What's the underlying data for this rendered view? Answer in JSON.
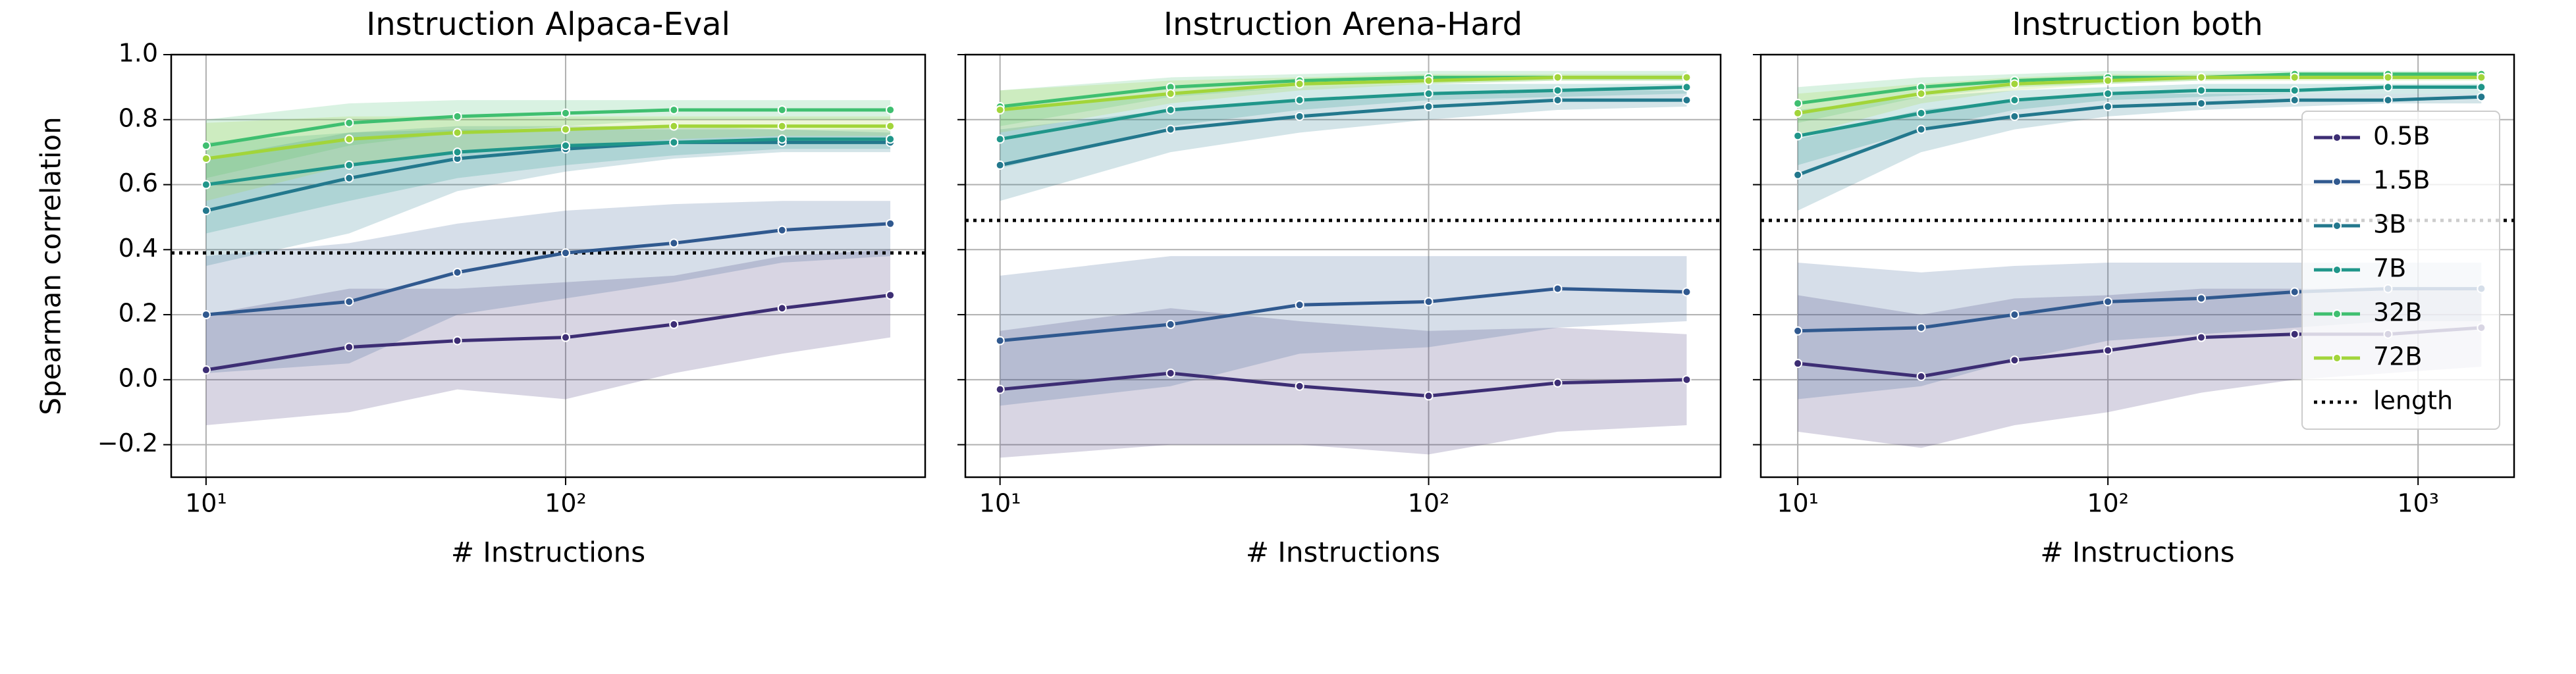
{
  "chart_data": [
    {
      "type": "line",
      "title": "Instruction Alpaca-Eval",
      "xlabel": "# Instructions",
      "ylabel": "Spearman correlation",
      "xscale": "log",
      "grid": true,
      "x": [
        10,
        25,
        50,
        100,
        200,
        400,
        800
      ],
      "xlim": [
        8,
        1000
      ],
      "xticks": [
        {
          "value": 10,
          "label": "10¹"
        },
        {
          "value": 100,
          "label": "10²"
        }
      ],
      "ylim": [
        -0.3,
        1.0
      ],
      "yticks": [
        {
          "value": -0.2,
          "label": "−0.2"
        },
        {
          "value": 0,
          "label": "0.0"
        },
        0.2,
        0.4,
        0.6,
        0.8,
        {
          "value": 1,
          "label": "1.0"
        }
      ],
      "series": [
        {
          "name": "0.5B",
          "color": "#3d2e74",
          "values": [
            0.03,
            0.1,
            0.12,
            0.13,
            0.17,
            0.22,
            0.26
          ],
          "lower": [
            -0.14,
            -0.1,
            -0.03,
            -0.06,
            0.02,
            0.08,
            0.13
          ],
          "upper": [
            0.2,
            0.28,
            0.28,
            0.3,
            0.32,
            0.38,
            0.4
          ]
        },
        {
          "name": "1.5B",
          "color": "#30598f",
          "values": [
            0.2,
            0.24,
            0.33,
            0.39,
            0.42,
            0.46,
            0.48
          ],
          "lower": [
            0.02,
            0.05,
            0.2,
            0.25,
            0.3,
            0.36,
            0.38
          ],
          "upper": [
            0.38,
            0.42,
            0.48,
            0.52,
            0.54,
            0.55,
            0.55
          ]
        },
        {
          "name": "3B",
          "color": "#23788d",
          "values": [
            0.52,
            0.62,
            0.68,
            0.71,
            0.73,
            0.73,
            0.73
          ],
          "lower": [
            0.35,
            0.45,
            0.58,
            0.64,
            0.68,
            0.7,
            0.7
          ],
          "upper": [
            0.68,
            0.76,
            0.78,
            0.78,
            0.78,
            0.77,
            0.76
          ]
        },
        {
          "name": "7B",
          "color": "#20968a",
          "values": [
            0.6,
            0.66,
            0.7,
            0.72,
            0.73,
            0.74,
            0.74
          ],
          "lower": [
            0.45,
            0.55,
            0.62,
            0.66,
            0.69,
            0.71,
            0.71
          ],
          "upper": [
            0.73,
            0.76,
            0.77,
            0.77,
            0.77,
            0.77,
            0.77
          ]
        },
        {
          "name": "32B",
          "color": "#3fbf70",
          "values": [
            0.72,
            0.79,
            0.81,
            0.82,
            0.83,
            0.83,
            0.83
          ],
          "lower": [
            0.62,
            0.72,
            0.76,
            0.78,
            0.8,
            0.8,
            0.8
          ],
          "upper": [
            0.8,
            0.85,
            0.86,
            0.86,
            0.86,
            0.86,
            0.86
          ]
        },
        {
          "name": "72B",
          "color": "#a2d53a",
          "values": [
            0.68,
            0.74,
            0.76,
            0.77,
            0.78,
            0.78,
            0.78
          ],
          "lower": [
            0.55,
            0.66,
            0.7,
            0.72,
            0.74,
            0.75,
            0.75
          ],
          "upper": [
            0.79,
            0.81,
            0.81,
            0.81,
            0.81,
            0.81,
            0.81
          ]
        }
      ],
      "reference": {
        "name": "length",
        "value": 0.39
      }
    },
    {
      "type": "line",
      "title": "Instruction Arena-Hard",
      "xlabel": "# Instructions",
      "xscale": "log",
      "grid": true,
      "x": [
        10,
        25,
        50,
        100,
        200,
        400
      ],
      "xlim": [
        8.3,
        480
      ],
      "xticks": [
        {
          "value": 10,
          "label": "10¹"
        },
        {
          "value": 100,
          "label": "10²"
        }
      ],
      "ylim": [
        -0.3,
        1.0
      ],
      "yticks": [
        -0.2,
        0,
        0.2,
        0.4,
        0.6,
        0.8,
        1
      ],
      "series": [
        {
          "name": "0.5B",
          "color": "#3d2e74",
          "values": [
            -0.03,
            0.02,
            -0.02,
            -0.05,
            -0.01,
            0.0
          ],
          "lower": [
            -0.24,
            -0.2,
            -0.2,
            -0.23,
            -0.16,
            -0.14
          ],
          "upper": [
            0.15,
            0.22,
            0.18,
            0.15,
            0.16,
            0.14
          ]
        },
        {
          "name": "1.5B",
          "color": "#30598f",
          "values": [
            0.12,
            0.17,
            0.23,
            0.24,
            0.28,
            0.27
          ],
          "lower": [
            -0.08,
            -0.02,
            0.08,
            0.1,
            0.16,
            0.18
          ],
          "upper": [
            0.32,
            0.38,
            0.38,
            0.38,
            0.38,
            0.38
          ]
        },
        {
          "name": "3B",
          "color": "#23788d",
          "values": [
            0.66,
            0.77,
            0.81,
            0.84,
            0.86,
            0.86
          ],
          "lower": [
            0.55,
            0.7,
            0.76,
            0.8,
            0.83,
            0.84
          ],
          "upper": [
            0.77,
            0.83,
            0.86,
            0.88,
            0.89,
            0.89
          ]
        },
        {
          "name": "7B",
          "color": "#20968a",
          "values": [
            0.74,
            0.83,
            0.86,
            0.88,
            0.89,
            0.9
          ],
          "lower": [
            0.65,
            0.78,
            0.83,
            0.86,
            0.87,
            0.88
          ],
          "upper": [
            0.83,
            0.88,
            0.9,
            0.91,
            0.91,
            0.91
          ]
        },
        {
          "name": "32B",
          "color": "#3fbf70",
          "values": [
            0.84,
            0.9,
            0.92,
            0.93,
            0.93,
            0.93
          ],
          "lower": [
            0.78,
            0.87,
            0.9,
            0.91,
            0.92,
            0.92
          ],
          "upper": [
            0.89,
            0.93,
            0.94,
            0.95,
            0.95,
            0.95
          ]
        },
        {
          "name": "72B",
          "color": "#a2d53a",
          "values": [
            0.83,
            0.88,
            0.91,
            0.92,
            0.93,
            0.93
          ],
          "lower": [
            0.76,
            0.85,
            0.89,
            0.91,
            0.92,
            0.92
          ],
          "upper": [
            0.89,
            0.92,
            0.93,
            0.94,
            0.94,
            0.94
          ]
        }
      ],
      "reference": {
        "name": "length",
        "value": 0.49
      }
    },
    {
      "type": "line",
      "title": "Instruction both",
      "xlabel": "# Instructions",
      "xscale": "log",
      "grid": true,
      "legend": "right",
      "x": [
        10,
        25,
        50,
        100,
        200,
        400,
        800,
        1600
      ],
      "xlim": [
        7.6,
        2040
      ],
      "xticks": [
        {
          "value": 10,
          "label": "10¹"
        },
        {
          "value": 100,
          "label": "10²"
        },
        {
          "value": 1000,
          "label": "10³"
        }
      ],
      "ylim": [
        -0.3,
        1.0
      ],
      "yticks": [
        -0.2,
        0,
        0.2,
        0.4,
        0.6,
        0.8,
        1
      ],
      "series": [
        {
          "name": "0.5B",
          "color": "#3d2e74",
          "values": [
            0.05,
            0.01,
            0.06,
            0.09,
            0.13,
            0.14,
            0.14,
            0.16
          ],
          "lower": [
            -0.16,
            -0.21,
            -0.14,
            -0.1,
            -0.04,
            0.0,
            0.02,
            0.04
          ],
          "upper": [
            0.26,
            0.2,
            0.25,
            0.26,
            0.28,
            0.28,
            0.28,
            0.28
          ]
        },
        {
          "name": "1.5B",
          "color": "#30598f",
          "values": [
            0.15,
            0.16,
            0.2,
            0.24,
            0.25,
            0.27,
            0.28,
            0.28
          ],
          "lower": [
            -0.06,
            -0.02,
            0.06,
            0.12,
            0.14,
            0.16,
            0.18,
            0.18
          ],
          "upper": [
            0.36,
            0.33,
            0.35,
            0.36,
            0.36,
            0.36,
            0.36,
            0.36
          ]
        },
        {
          "name": "3B",
          "color": "#23788d",
          "values": [
            0.63,
            0.77,
            0.81,
            0.84,
            0.85,
            0.86,
            0.86,
            0.87
          ],
          "lower": [
            0.52,
            0.7,
            0.77,
            0.81,
            0.83,
            0.84,
            0.85,
            0.85
          ],
          "upper": [
            0.74,
            0.83,
            0.86,
            0.88,
            0.88,
            0.88,
            0.88,
            0.88
          ]
        },
        {
          "name": "7B",
          "color": "#20968a",
          "values": [
            0.75,
            0.82,
            0.86,
            0.88,
            0.89,
            0.89,
            0.9,
            0.9
          ],
          "lower": [
            0.66,
            0.77,
            0.83,
            0.86,
            0.87,
            0.88,
            0.88,
            0.88
          ],
          "upper": [
            0.83,
            0.87,
            0.89,
            0.9,
            0.91,
            0.91,
            0.91,
            0.91
          ]
        },
        {
          "name": "32B",
          "color": "#3fbf70",
          "values": [
            0.85,
            0.9,
            0.92,
            0.93,
            0.93,
            0.94,
            0.94,
            0.94
          ],
          "lower": [
            0.79,
            0.87,
            0.9,
            0.91,
            0.92,
            0.93,
            0.93,
            0.93
          ],
          "upper": [
            0.9,
            0.93,
            0.94,
            0.95,
            0.95,
            0.95,
            0.95,
            0.95
          ]
        },
        {
          "name": "72B",
          "color": "#a2d53a",
          "values": [
            0.82,
            0.88,
            0.91,
            0.92,
            0.93,
            0.93,
            0.93,
            0.93
          ],
          "lower": [
            0.75,
            0.85,
            0.89,
            0.91,
            0.92,
            0.92,
            0.92,
            0.92
          ],
          "upper": [
            0.88,
            0.91,
            0.93,
            0.94,
            0.94,
            0.94,
            0.94,
            0.94
          ]
        }
      ],
      "reference": {
        "name": "length",
        "value": 0.49
      }
    }
  ]
}
